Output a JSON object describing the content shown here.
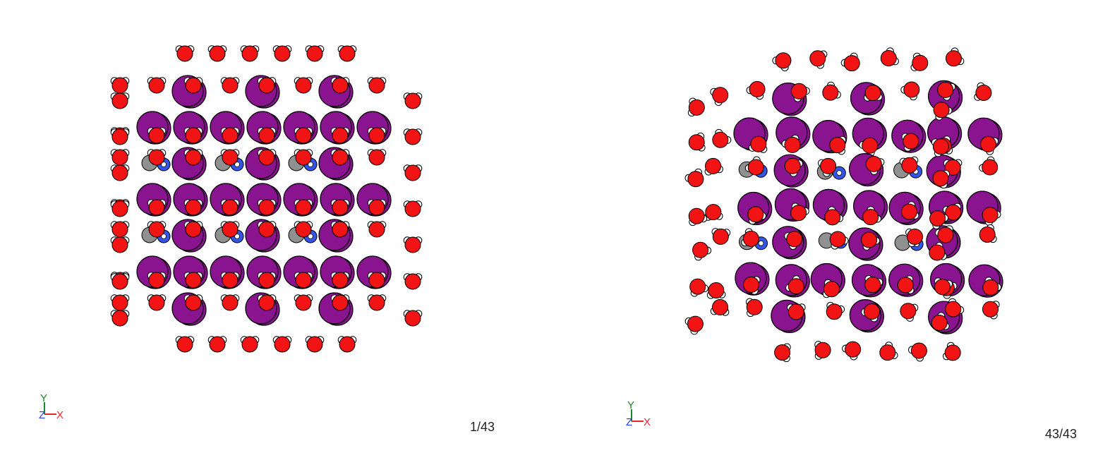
{
  "colors": {
    "oxygen": "#f21414",
    "hydrogen": "#ffffff",
    "metal": "#8a1490",
    "carbon": "#909090",
    "nitrogen": "#3355e8",
    "outline": "#000000",
    "axis_x": "#e8262b",
    "axis_y": "#1a8a2a",
    "axis_z": "#2244dd"
  },
  "axes": {
    "x_label": "X",
    "y_label": "Y",
    "z_label": "Z"
  },
  "frames": [
    {
      "counter": "1/43",
      "state": "ordered"
    },
    {
      "counter": "43/43",
      "state": "disordered"
    }
  ]
}
